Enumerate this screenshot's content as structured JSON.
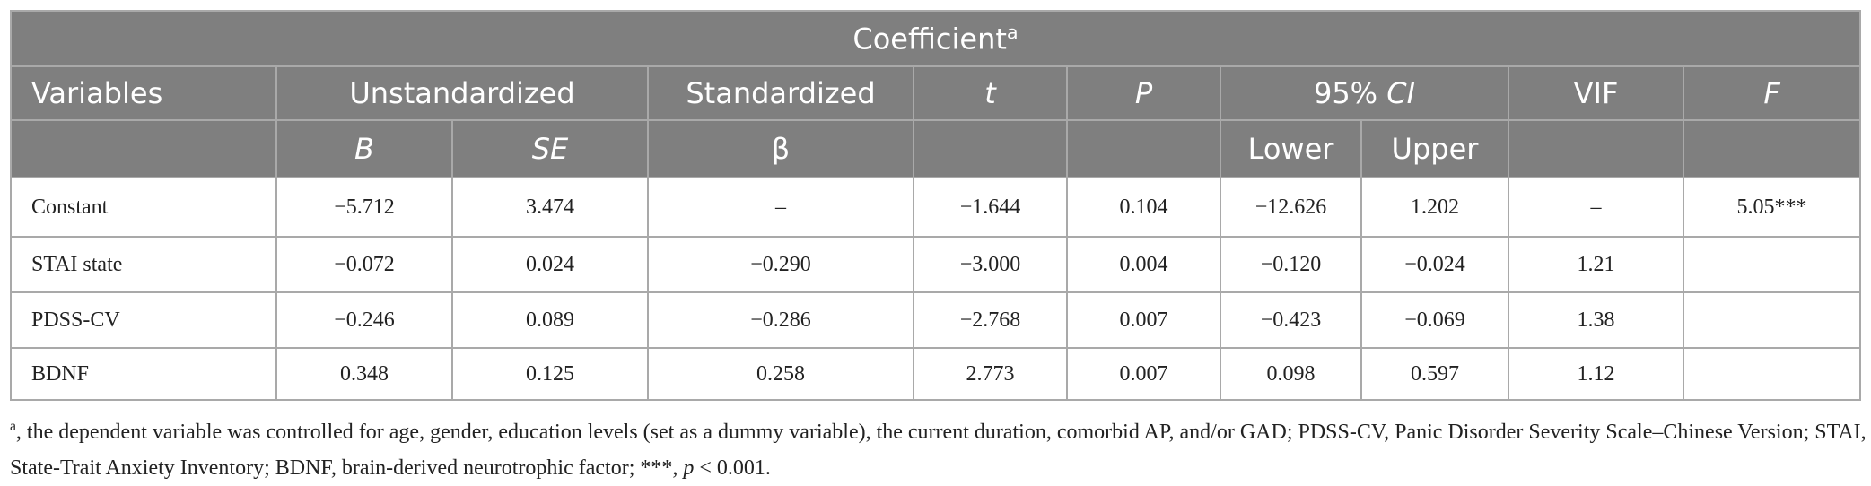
{
  "table": {
    "title": "Coefficient",
    "title_note": "a",
    "header": {
      "variables": "Variables",
      "unstandardized": "Unstandardized",
      "standardized": "Standardized",
      "t": "t",
      "p": "P",
      "ci": {
        "level": "95%",
        "name": "CI"
      },
      "vif": "VIF",
      "f": "F",
      "b": "B",
      "se": "SE",
      "beta": "β",
      "lower": "Lower",
      "upper": "Upper"
    },
    "rows": [
      [
        "Constant",
        "−5.712",
        "3.474",
        "–",
        "−1.644",
        "0.104",
        "−12.626",
        "1.202",
        "–",
        "5.05***"
      ],
      [
        "STAI state",
        "−0.072",
        "0.024",
        "−0.290",
        "−3.000",
        "0.004",
        "−0.120",
        "−0.024",
        "1.21"
      ],
      [
        "PDSS-CV",
        "−0.246",
        "0.089",
        "−0.286",
        "−2.768",
        "0.007",
        "−0.423",
        "−0.069",
        "1.38"
      ],
      [
        "BDNF",
        "0.348",
        "0.125",
        "0.258",
        "2.773",
        "0.007",
        "0.098",
        "0.597",
        "1.12"
      ]
    ]
  },
  "footnote": {
    "marker": "a",
    "text": ", the dependent variable was controlled for age, gender, education levels (set as a dummy variable), the current duration, comorbid AP, and/or GAD; PDSS-CV, Panic Disorder Severity Scale–Chinese Version; STAI, State-Trait Anxiety Inventory; BDNF, brain-derived neurotrophic factor; ***, ",
    "p": "p",
    "rest": " < 0.001."
  }
}
